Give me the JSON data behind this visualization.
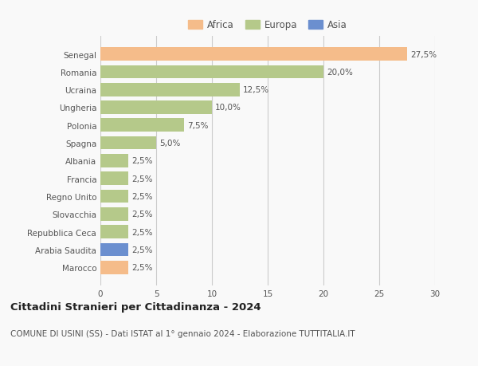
{
  "categories": [
    "Senegal",
    "Romania",
    "Ucraina",
    "Ungheria",
    "Polonia",
    "Spagna",
    "Albania",
    "Francia",
    "Regno Unito",
    "Slovacchia",
    "Repubblica Ceca",
    "Arabia Saudita",
    "Marocco"
  ],
  "values": [
    27.5,
    20.0,
    12.5,
    10.0,
    7.5,
    5.0,
    2.5,
    2.5,
    2.5,
    2.5,
    2.5,
    2.5,
    2.5
  ],
  "colors": [
    "#f5bc8a",
    "#b5c98a",
    "#b5c98a",
    "#b5c98a",
    "#b5c98a",
    "#b5c98a",
    "#b5c98a",
    "#b5c98a",
    "#b5c98a",
    "#b5c98a",
    "#b5c98a",
    "#6b8fcf",
    "#f5bc8a"
  ],
  "labels": [
    "27,5%",
    "20,0%",
    "12,5%",
    "10,0%",
    "7,5%",
    "5,0%",
    "2,5%",
    "2,5%",
    "2,5%",
    "2,5%",
    "2,5%",
    "2,5%",
    "2,5%"
  ],
  "legend_labels": [
    "Africa",
    "Europa",
    "Asia"
  ],
  "legend_colors": [
    "#f5bc8a",
    "#b5c98a",
    "#6b8fcf"
  ],
  "xlim": [
    0,
    30
  ],
  "xticks": [
    0,
    5,
    10,
    15,
    20,
    25,
    30
  ],
  "title": "Cittadini Stranieri per Cittadinanza - 2024",
  "subtitle": "COMUNE DI USINI (SS) - Dati ISTAT al 1° gennaio 2024 - Elaborazione TUTTITALIA.IT",
  "background_color": "#f9f9f9",
  "grid_color": "#cccccc",
  "bar_height": 0.75,
  "title_fontsize": 9.5,
  "subtitle_fontsize": 7.5,
  "label_fontsize": 7.5,
  "tick_fontsize": 7.5,
  "legend_fontsize": 8.5
}
